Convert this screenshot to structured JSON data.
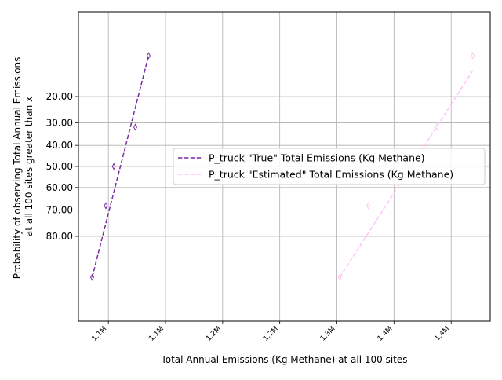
{
  "chart_data": {
    "type": "line",
    "xlabel": "Total Annual Emissions (Kg Methane) at all 100 sites",
    "ylabel_lines": [
      "Probability of observing Total Annual Emissions",
      "at all 100 sites greater than x"
    ],
    "xlim": [
      1.0738,
      1.4342
    ],
    "xtick_values": [
      1.1,
      1.15,
      1.2,
      1.25,
      1.3,
      1.35,
      1.4
    ],
    "xtick_labels": [
      "1.1M",
      "1.1M",
      "1.2M",
      "1.2M",
      "1.3M",
      "1.4M",
      "1.4M"
    ],
    "x_unit": "million kg",
    "y_scale": "probit",
    "ytick_values": [
      20,
      30,
      40,
      50,
      60,
      70,
      80
    ],
    "ytick_labels": [
      "20.00",
      "30.00",
      "40.00",
      "50.00",
      "60.00",
      "70.00",
      "80.00"
    ],
    "grid": true,
    "legend_position": "center-right",
    "series": [
      {
        "name": "P_truck \"True\" Total Emissions (Kg Methane)",
        "color": "#7b2d9e",
        "line_style": "dashed",
        "marker": "thin_diamond",
        "points": [
          {
            "x": 1.0858,
            "y": 90.9
          },
          {
            "x": 1.0978,
            "y": 68.2
          },
          {
            "x": 1.1048,
            "y": 50.0
          },
          {
            "x": 1.1236,
            "y": 31.8
          },
          {
            "x": 1.1352,
            "y": 9.1
          }
        ],
        "fit_line": [
          {
            "x": 1.0858,
            "y": 90.9
          },
          {
            "x": 1.1352,
            "y": 9.1
          }
        ]
      },
      {
        "name": "P_truck \"Estimated\" Total Emissions (Kg Methane)",
        "color": "#ffc4f8",
        "line_style": "dashed",
        "marker": "thin_diamond",
        "points": [
          {
            "x": 1.3025,
            "y": 90.9
          },
          {
            "x": 1.3275,
            "y": 68.2
          },
          {
            "x": 1.3875,
            "y": 31.8
          },
          {
            "x": 1.4188,
            "y": 9.1
          }
        ],
        "fit_line": [
          {
            "x": 1.3025,
            "y": 90.9
          },
          {
            "x": 1.4188,
            "y": 12.5
          }
        ]
      }
    ]
  }
}
